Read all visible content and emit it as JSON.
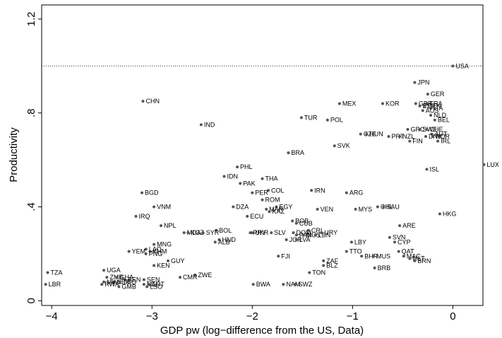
{
  "chart_data": {
    "type": "scatter",
    "xlabel": "GDP pw (log−difference from the US, Data)",
    "ylabel": "Productivity",
    "xlim": [
      -4.1,
      0.3
    ],
    "ylim": [
      -0.02,
      1.26
    ],
    "x_ticks": [
      {
        "v": -4,
        "label": "−4"
      },
      {
        "v": -3,
        "label": "−3"
      },
      {
        "v": -2,
        "label": "−2"
      },
      {
        "v": -1,
        "label": "−1"
      },
      {
        "v": 0,
        "label": "0"
      }
    ],
    "y_ticks": [
      {
        "v": 0,
        "label": "0"
      },
      {
        "v": 0.4,
        "label": ".4"
      },
      {
        "v": 0.8,
        "label": ".8"
      },
      {
        "v": 1.2,
        "label": "1.2"
      }
    ],
    "reference_line_y": 1.0,
    "grid": false,
    "point_color": "#555555",
    "points": [
      {
        "label": "USA",
        "x": 0.0,
        "y": 1.0
      },
      {
        "label": "JPN",
        "x": -0.38,
        "y": 0.93
      },
      {
        "label": "GER",
        "x": -0.25,
        "y": 0.88
      },
      {
        "label": "MEX",
        "x": -1.13,
        "y": 0.84
      },
      {
        "label": "KOR",
        "x": -0.7,
        "y": 0.84
      },
      {
        "label": "GBR",
        "x": -0.37,
        "y": 0.84
      },
      {
        "label": "FRA",
        "x": -0.26,
        "y": 0.84
      },
      {
        "label": "ESP",
        "x": -0.33,
        "y": 0.83
      },
      {
        "label": "DEN",
        "x": -0.28,
        "y": 0.83
      },
      {
        "label": "ITA",
        "x": -0.22,
        "y": 0.82
      },
      {
        "label": "AUS",
        "x": -0.3,
        "y": 0.81
      },
      {
        "label": "NLD",
        "x": -0.22,
        "y": 0.79
      },
      {
        "label": "BEL",
        "x": -0.18,
        "y": 0.77
      },
      {
        "label": "CHN",
        "x": -3.09,
        "y": 0.85
      },
      {
        "label": "IND",
        "x": -2.51,
        "y": 0.75
      },
      {
        "label": "TUR",
        "x": -1.51,
        "y": 0.78
      },
      {
        "label": "POL",
        "x": -1.25,
        "y": 0.77
      },
      {
        "label": "GRC",
        "x": -0.45,
        "y": 0.73
      },
      {
        "label": "SWE",
        "x": -0.33,
        "y": 0.73
      },
      {
        "label": "CHE",
        "x": -0.26,
        "y": 0.73
      },
      {
        "label": "AUT",
        "x": -0.21,
        "y": 0.71
      },
      {
        "label": "CZE",
        "x": -0.92,
        "y": 0.71
      },
      {
        "label": "HUN",
        "x": -0.86,
        "y": 0.71
      },
      {
        "label": "PRT",
        "x": -0.64,
        "y": 0.7
      },
      {
        "label": "NZL",
        "x": -0.53,
        "y": 0.7
      },
      {
        "label": "DNK",
        "x": -0.27,
        "y": 0.7
      },
      {
        "label": "NOR",
        "x": -0.2,
        "y": 0.7
      },
      {
        "label": "FIN",
        "x": -0.43,
        "y": 0.68
      },
      {
        "label": "IRL",
        "x": -0.15,
        "y": 0.68
      },
      {
        "label": "SVK",
        "x": -1.18,
        "y": 0.66
      },
      {
        "label": "BRA",
        "x": -1.64,
        "y": 0.63
      },
      {
        "label": "LUX",
        "x": 0.31,
        "y": 0.58
      },
      {
        "label": "ISL",
        "x": -0.26,
        "y": 0.56
      },
      {
        "label": "PHL",
        "x": -2.15,
        "y": 0.57
      },
      {
        "label": "IDN",
        "x": -2.28,
        "y": 0.53
      },
      {
        "label": "THA",
        "x": -1.9,
        "y": 0.52
      },
      {
        "label": "PAK",
        "x": -2.12,
        "y": 0.5
      },
      {
        "label": "IRN",
        "x": -1.41,
        "y": 0.47
      },
      {
        "label": "COL",
        "x": -1.84,
        "y": 0.47
      },
      {
        "label": "PER",
        "x": -2.0,
        "y": 0.46
      },
      {
        "label": "ARG",
        "x": -1.06,
        "y": 0.46
      },
      {
        "label": "BGD",
        "x": -3.1,
        "y": 0.46
      },
      {
        "label": "ROM",
        "x": -1.9,
        "y": 0.43
      },
      {
        "label": "EGY",
        "x": -1.76,
        "y": 0.4
      },
      {
        "label": "DZA",
        "x": -2.19,
        "y": 0.4
      },
      {
        "label": "MAR",
        "x": -1.86,
        "y": 0.39
      },
      {
        "label": "KAZ",
        "x": -1.83,
        "y": 0.38
      },
      {
        "label": "VEN",
        "x": -1.35,
        "y": 0.39
      },
      {
        "label": "CHL",
        "x": -0.75,
        "y": 0.4
      },
      {
        "label": "SAU",
        "x": -0.69,
        "y": 0.4
      },
      {
        "label": "MYS",
        "x": -0.97,
        "y": 0.39
      },
      {
        "label": "VNM",
        "x": -2.98,
        "y": 0.4
      },
      {
        "label": "ECU",
        "x": -2.05,
        "y": 0.36
      },
      {
        "label": "HKG",
        "x": -0.13,
        "y": 0.37
      },
      {
        "label": "IRQ",
        "x": -3.16,
        "y": 0.36
      },
      {
        "label": "BOB",
        "x": -1.6,
        "y": 0.34
      },
      {
        "label": "CUB",
        "x": -1.56,
        "y": 0.33
      },
      {
        "label": "NPL",
        "x": -2.91,
        "y": 0.32
      },
      {
        "label": "ARE",
        "x": -0.53,
        "y": 0.32
      },
      {
        "label": "BOL",
        "x": -2.36,
        "y": 0.3
      },
      {
        "label": "MDA",
        "x": -2.68,
        "y": 0.29
      },
      {
        "label": "KGZ",
        "x": -2.64,
        "y": 0.29
      },
      {
        "label": "SYR",
        "x": -2.49,
        "y": 0.29
      },
      {
        "label": "PRY",
        "x": -2.02,
        "y": 0.29
      },
      {
        "label": "SLV",
        "x": -1.81,
        "y": 0.29
      },
      {
        "label": "UKR",
        "x": -2.0,
        "y": 0.29
      },
      {
        "label": "DOM",
        "x": -1.59,
        "y": 0.29
      },
      {
        "label": "CRI",
        "x": -1.44,
        "y": 0.3
      },
      {
        "label": "URY",
        "x": -1.31,
        "y": 0.29
      },
      {
        "label": "PAN",
        "x": -1.56,
        "y": 0.28
      },
      {
        "label": "MUS",
        "x": -1.49,
        "y": 0.28
      },
      {
        "label": "LBN",
        "x": -1.37,
        "y": 0.28
      },
      {
        "label": "SVN",
        "x": -0.63,
        "y": 0.27
      },
      {
        "label": "HND",
        "x": -2.33,
        "y": 0.26
      },
      {
        "label": "ALB",
        "x": -2.37,
        "y": 0.25
      },
      {
        "label": "JOR",
        "x": -1.66,
        "y": 0.26
      },
      {
        "label": "LVA",
        "x": -1.56,
        "y": 0.26
      },
      {
        "label": "LBY",
        "x": -1.01,
        "y": 0.25
      },
      {
        "label": "CYP",
        "x": -0.58,
        "y": 0.25
      },
      {
        "label": "MNG",
        "x": -2.98,
        "y": 0.24
      },
      {
        "label": "LAO",
        "x": -3.06,
        "y": 0.22
      },
      {
        "label": "KHM",
        "x": -3.02,
        "y": 0.21
      },
      {
        "label": "YEM",
        "x": -3.23,
        "y": 0.21
      },
      {
        "label": "PNG",
        "x": -3.06,
        "y": 0.2
      },
      {
        "label": "TTO",
        "x": -1.06,
        "y": 0.21
      },
      {
        "label": "QAT",
        "x": -0.54,
        "y": 0.21
      },
      {
        "label": "FJI",
        "x": -1.74,
        "y": 0.19
      },
      {
        "label": "BHR",
        "x": -0.91,
        "y": 0.19
      },
      {
        "label": "MUS",
        "x": -0.79,
        "y": 0.19
      },
      {
        "label": "MAC",
        "x": -0.49,
        "y": 0.19
      },
      {
        "label": "MLT",
        "x": -0.43,
        "y": 0.18
      },
      {
        "label": "BRN",
        "x": -0.38,
        "y": 0.17
      },
      {
        "label": "GUY",
        "x": -2.84,
        "y": 0.17
      },
      {
        "label": "ZAF",
        "x": -1.29,
        "y": 0.17
      },
      {
        "label": "KEN",
        "x": -2.98,
        "y": 0.15
      },
      {
        "label": "BLZ",
        "x": -1.29,
        "y": 0.15
      },
      {
        "label": "BRB",
        "x": -0.78,
        "y": 0.14
      },
      {
        "label": "TZA",
        "x": -4.04,
        "y": 0.12
      },
      {
        "label": "UGA",
        "x": -3.48,
        "y": 0.13
      },
      {
        "label": "TON",
        "x": -1.43,
        "y": 0.12
      },
      {
        "label": "ZWE",
        "x": -2.57,
        "y": 0.11
      },
      {
        "label": "CMR",
        "x": -2.72,
        "y": 0.1
      },
      {
        "label": "ZMB",
        "x": -3.45,
        "y": 0.1
      },
      {
        "label": "GHA",
        "x": -3.35,
        "y": 0.1
      },
      {
        "label": "SEN",
        "x": -3.08,
        "y": 0.09
      },
      {
        "label": "BEN",
        "x": -3.27,
        "y": 0.09
      },
      {
        "label": "NER",
        "x": -3.38,
        "y": 0.08
      },
      {
        "label": "MWI",
        "x": -3.48,
        "y": 0.08
      },
      {
        "label": "TGO",
        "x": -3.32,
        "y": 0.08
      },
      {
        "label": "MLI",
        "x": -3.08,
        "y": 0.07
      },
      {
        "label": "ART",
        "x": -3.03,
        "y": 0.07
      },
      {
        "label": "RWA",
        "x": -3.5,
        "y": 0.07
      },
      {
        "label": "LSO",
        "x": -3.05,
        "y": 0.06
      },
      {
        "label": "GMB",
        "x": -3.33,
        "y": 0.06
      },
      {
        "label": "LBR",
        "x": -4.06,
        "y": 0.07
      },
      {
        "label": "BWA",
        "x": -1.99,
        "y": 0.07
      },
      {
        "label": "NAM",
        "x": -1.69,
        "y": 0.07
      },
      {
        "label": "SWZ",
        "x": -1.57,
        "y": 0.07
      }
    ]
  }
}
